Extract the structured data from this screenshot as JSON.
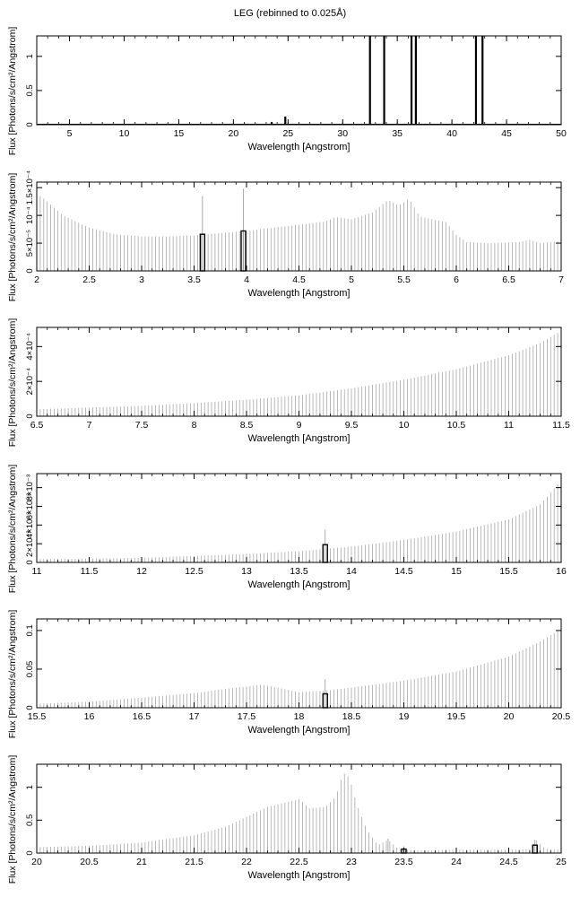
{
  "page": {
    "title": "LEG (rebinned to 0.025Å)"
  },
  "chart_data": [
    {
      "type": "bar",
      "xlim": [
        2,
        50
      ],
      "ylim": [
        0,
        1.3
      ],
      "xticks": [
        5,
        10,
        15,
        20,
        25,
        30,
        35,
        40,
        45,
        50
      ],
      "yticks": [
        {
          "v": 0,
          "label": "0"
        },
        {
          "v": 0.5,
          "label": "0.5"
        },
        {
          "v": 1,
          "label": "1"
        }
      ],
      "xlabel": "Wavelength [Angstrom]",
      "ylabel": "Flux [Photons/s/cm²/Angstrom]",
      "baseline": 0.005,
      "spikes": [
        {
          "x": 23.5,
          "y": 0.04
        },
        {
          "x": 24.75,
          "y": 0.12
        },
        {
          "x": 32.5,
          "y": 1.3
        },
        {
          "x": 33.8,
          "y": 1.3
        },
        {
          "x": 36.3,
          "y": 1.3
        },
        {
          "x": 36.7,
          "y": 1.3
        },
        {
          "x": 42.2,
          "y": 1.3
        },
        {
          "x": 42.8,
          "y": 1.3
        }
      ]
    },
    {
      "type": "bar",
      "xlim": [
        2,
        7
      ],
      "ylim": [
        0,
        0.00016
      ],
      "xticks": [
        2,
        2.5,
        3,
        3.5,
        4,
        4.5,
        5,
        5.5,
        6,
        6.5,
        7
      ],
      "yticks": [
        {
          "v": 0,
          "label": "0"
        },
        {
          "v": 5e-05,
          "label": "5×10⁻⁵"
        },
        {
          "v": 0.0001,
          "label": "10⁻⁴"
        },
        {
          "v": 0.00015,
          "label": "1.5×10⁻⁴"
        }
      ],
      "xlabel": "Wavelength [Angstrom]",
      "ylabel": "Flux [Photons/s/cm²/Angstrom]",
      "envelope": [
        [
          2,
          0.00014
        ],
        [
          2.1,
          0.000125
        ],
        [
          2.25,
          0.0001
        ],
        [
          2.5,
          7.8e-05
        ],
        [
          2.75,
          6.6e-05
        ],
        [
          3.0,
          6.2e-05
        ],
        [
          3.25,
          6.2e-05
        ],
        [
          3.5,
          6.4e-05
        ],
        [
          3.75,
          6.8e-05
        ],
        [
          4.0,
          7.2e-05
        ],
        [
          4.25,
          7.8e-05
        ],
        [
          4.5,
          8.3e-05
        ],
        [
          4.75,
          8.9e-05
        ],
        [
          4.85,
          9.7e-05
        ],
        [
          5.0,
          9.3e-05
        ],
        [
          5.2,
          0.000105
        ],
        [
          5.35,
          0.000128
        ],
        [
          5.45,
          0.000118
        ],
        [
          5.55,
          0.00013
        ],
        [
          5.65,
          9.8e-05
        ],
        [
          5.9,
          8.8e-05
        ],
        [
          6.0,
          6.5e-05
        ],
        [
          6.1,
          5.2e-05
        ],
        [
          6.3,
          5e-05
        ],
        [
          6.6,
          5.2e-05
        ],
        [
          6.7,
          5.6e-05
        ],
        [
          6.8,
          5e-05
        ],
        [
          7.0,
          5.4e-05
        ]
      ],
      "thin_spikes": [
        {
          "x": 3.58,
          "y": 0.000135
        },
        {
          "x": 3.97,
          "y": 0.000148
        }
      ],
      "bars": [
        {
          "x": 3.58,
          "y": 6.6e-05
        },
        {
          "x": 3.97,
          "y": 7.2e-05
        }
      ]
    },
    {
      "type": "bar",
      "xlim": [
        6.5,
        11.5
      ],
      "ylim": [
        0,
        0.00051
      ],
      "xticks": [
        6.5,
        7,
        7.5,
        8,
        8.5,
        9,
        9.5,
        10,
        10.5,
        11,
        11.5
      ],
      "yticks": [
        {
          "v": 0,
          "label": "0"
        },
        {
          "v": 0.0002,
          "label": "2×10⁻⁴"
        },
        {
          "v": 0.0004,
          "label": "4×10⁻⁴"
        }
      ],
      "xlabel": "Wavelength [Angstrom]",
      "ylabel": "Flux [Photons/s/cm²/Angstrom]",
      "envelope": [
        [
          6.5,
          4e-05
        ],
        [
          7.0,
          5e-05
        ],
        [
          7.5,
          6e-05
        ],
        [
          8.0,
          7.5e-05
        ],
        [
          8.5,
          9.5e-05
        ],
        [
          9.0,
          0.00012
        ],
        [
          9.5,
          0.00016
        ],
        [
          10.0,
          0.00021
        ],
        [
          10.5,
          0.00027
        ],
        [
          11.0,
          0.00035
        ],
        [
          11.3,
          0.00042
        ],
        [
          11.5,
          0.00049
        ]
      ],
      "thin_spikes": [],
      "bars": []
    },
    {
      "type": "bar",
      "xlim": [
        11,
        16
      ],
      "ylim": [
        0,
        0.0095
      ],
      "xticks": [
        11,
        11.5,
        12,
        12.5,
        13,
        13.5,
        14,
        14.5,
        15,
        15.5,
        16
      ],
      "yticks": [
        {
          "v": 0,
          "label": "0"
        },
        {
          "v": 0.002,
          "label": "2×10⁻³"
        },
        {
          "v": 0.004,
          "label": "4×10⁻³"
        },
        {
          "v": 0.006,
          "label": "6×10⁻³"
        },
        {
          "v": 0.008,
          "label": "8×10⁻³"
        }
      ],
      "xlabel": "Wavelength [Angstrom]",
      "ylabel": "Flux [Photons/s/cm²/Angstrom]",
      "envelope": [
        [
          11,
          0.00035
        ],
        [
          11.5,
          0.0004
        ],
        [
          12.0,
          0.0005
        ],
        [
          12.5,
          0.0007
        ],
        [
          13.0,
          0.0009
        ],
        [
          13.5,
          0.0012
        ],
        [
          14.0,
          0.0017
        ],
        [
          14.5,
          0.0024
        ],
        [
          15.0,
          0.0033
        ],
        [
          15.5,
          0.0046
        ],
        [
          15.8,
          0.0062
        ],
        [
          16.0,
          0.0088
        ]
      ],
      "thin_spikes": [
        {
          "x": 13.75,
          "y": 0.0035
        }
      ],
      "bars": [
        {
          "x": 13.75,
          "y": 0.0019
        }
      ]
    },
    {
      "type": "bar",
      "xlim": [
        15.5,
        20.5
      ],
      "ylim": [
        0,
        0.115
      ],
      "xticks": [
        15.5,
        16,
        16.5,
        17,
        17.5,
        18,
        18.5,
        19,
        19.5,
        20,
        20.5
      ],
      "yticks": [
        {
          "v": 0,
          "label": "0"
        },
        {
          "v": 0.05,
          "label": "0.05"
        },
        {
          "v": 0.1,
          "label": "0.1"
        }
      ],
      "xlabel": "Wavelength [Angstrom]",
      "ylabel": "Flux [Photons/s/cm²/Angstrom]",
      "envelope": [
        [
          15.5,
          0.005
        ],
        [
          16.0,
          0.008
        ],
        [
          16.5,
          0.013
        ],
        [
          17.0,
          0.019
        ],
        [
          17.4,
          0.026
        ],
        [
          17.65,
          0.03
        ],
        [
          17.8,
          0.026
        ],
        [
          18.0,
          0.02
        ],
        [
          18.3,
          0.023
        ],
        [
          18.5,
          0.026
        ],
        [
          19.0,
          0.035
        ],
        [
          19.5,
          0.047
        ],
        [
          20.0,
          0.066
        ],
        [
          20.3,
          0.086
        ],
        [
          20.5,
          0.102
        ]
      ],
      "thin_spikes": [
        {
          "x": 18.25,
          "y": 0.037
        }
      ],
      "bars": [
        {
          "x": 18.25,
          "y": 0.018
        }
      ]
    },
    {
      "type": "bar",
      "xlim": [
        20,
        25
      ],
      "ylim": [
        0,
        1.35
      ],
      "xticks": [
        20,
        20.5,
        21,
        21.5,
        22,
        22.5,
        23,
        23.5,
        24,
        24.5,
        25
      ],
      "yticks": [
        {
          "v": 0,
          "label": "0"
        },
        {
          "v": 0.5,
          "label": "0.5"
        },
        {
          "v": 1,
          "label": "1"
        }
      ],
      "xlabel": "Wavelength [Angstrom]",
      "ylabel": "Flux [Photons/s/cm²/Angstrom]",
      "envelope": [
        [
          20,
          0.09
        ],
        [
          20.5,
          0.11
        ],
        [
          21.0,
          0.16
        ],
        [
          21.5,
          0.27
        ],
        [
          21.8,
          0.4
        ],
        [
          22.0,
          0.55
        ],
        [
          22.2,
          0.7
        ],
        [
          22.5,
          0.82
        ],
        [
          22.6,
          0.68
        ],
        [
          22.75,
          0.7
        ],
        [
          22.85,
          0.85
        ],
        [
          22.92,
          1.22
        ],
        [
          22.98,
          1.15
        ],
        [
          23.05,
          0.75
        ],
        [
          23.15,
          0.35
        ],
        [
          23.25,
          0.12
        ],
        [
          23.35,
          0.2
        ],
        [
          23.45,
          0.06
        ],
        [
          23.6,
          0.04
        ],
        [
          24.0,
          0.05
        ],
        [
          24.5,
          0.05
        ],
        [
          24.7,
          0.06
        ],
        [
          24.76,
          0.2
        ],
        [
          24.85,
          0.06
        ],
        [
          25.0,
          0.05
        ]
      ],
      "thin_spikes": [
        {
          "x": 23.35,
          "y": 0.22
        },
        {
          "x": 23.5,
          "y": 0.1
        },
        {
          "x": 24.75,
          "y": 0.2
        }
      ],
      "bars": [
        {
          "x": 23.5,
          "y": 0.06
        },
        {
          "x": 24.75,
          "y": 0.12
        }
      ]
    }
  ]
}
